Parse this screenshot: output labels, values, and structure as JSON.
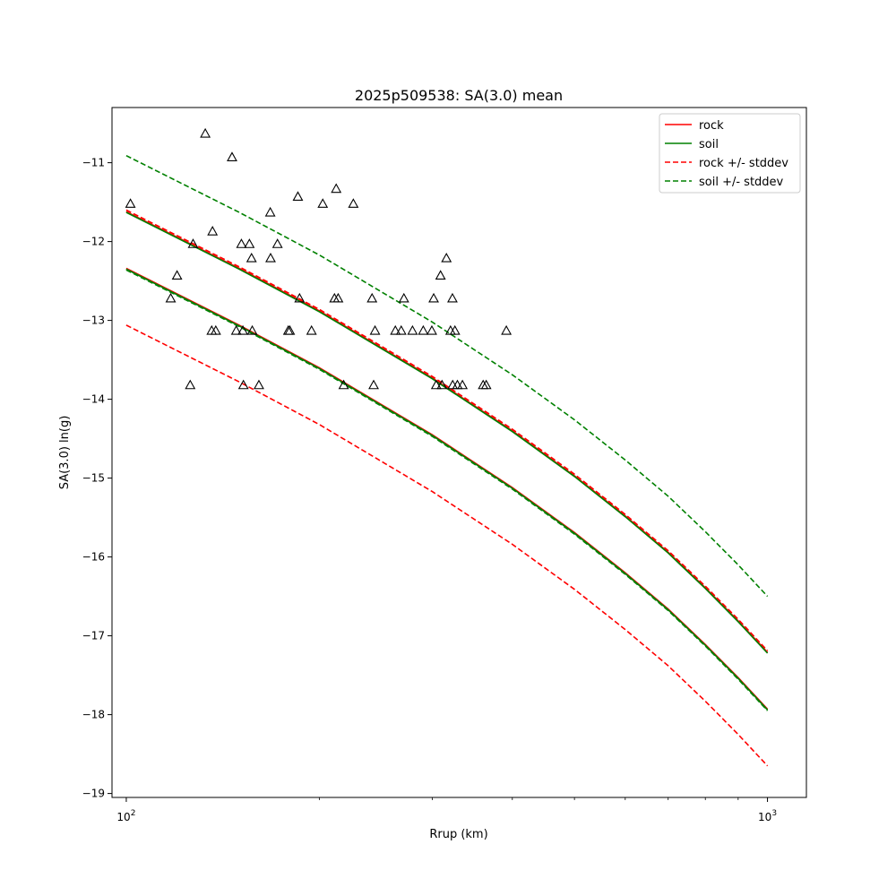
{
  "chart_data": {
    "type": "scatter",
    "title": "2025p509538: SA(3.0) mean",
    "xlabel": "Rrup (km)",
    "ylabel": "SA(3.0) ln(g)",
    "xscale": "log",
    "xlim": [
      95,
      1150
    ],
    "ylim": [
      -19.05,
      -10.3
    ],
    "grid": false,
    "legend_position": "top-right",
    "x_ticks": [
      {
        "value": 100,
        "label": "10",
        "exp": "2"
      },
      {
        "value": 1000,
        "label": "10",
        "exp": "3"
      }
    ],
    "y_ticks": [
      {
        "value": -11,
        "label": "−11"
      },
      {
        "value": -12,
        "label": "−12"
      },
      {
        "value": -13,
        "label": "−13"
      },
      {
        "value": -14,
        "label": "−14"
      },
      {
        "value": -15,
        "label": "−15"
      },
      {
        "value": -16,
        "label": "−16"
      },
      {
        "value": -17,
        "label": "−17"
      },
      {
        "value": -18,
        "label": "−18"
      },
      {
        "value": -19,
        "label": "−19"
      }
    ],
    "x_grid": [
      100,
      200,
      300,
      400,
      500,
      600,
      700,
      800,
      900,
      1000
    ],
    "series": [
      {
        "name": "rock",
        "color": "#ff0000",
        "dash": "solid",
        "x": [
          100,
          150,
          200,
          300,
          400,
          500,
          600,
          700,
          800,
          900,
          1000
        ],
        "y": [
          -12.34,
          -13.06,
          -13.6,
          -14.45,
          -15.12,
          -15.69,
          -16.2,
          -16.66,
          -17.11,
          -17.53,
          -17.93
        ]
      },
      {
        "name": "soil",
        "color": "#008000",
        "dash": "solid",
        "x": [
          100,
          150,
          200,
          300,
          400,
          500,
          600,
          700,
          800,
          900,
          1000
        ],
        "y": [
          -12.35,
          -13.07,
          -13.61,
          -14.46,
          -15.13,
          -15.7,
          -16.21,
          -16.67,
          -17.12,
          -17.54,
          -17.94
        ]
      },
      {
        "name": "rock",
        "color": "#ff0000",
        "dash": "solid",
        "x": [
          100,
          150,
          200,
          300,
          400,
          500,
          600,
          700,
          800,
          900,
          1000
        ],
        "y": [
          -11.62,
          -12.34,
          -12.88,
          -13.73,
          -14.4,
          -14.97,
          -15.48,
          -15.94,
          -16.39,
          -16.81,
          -17.21
        ]
      },
      {
        "name": "soil",
        "color": "#008000",
        "dash": "solid",
        "x": [
          100,
          150,
          200,
          300,
          400,
          500,
          600,
          700,
          800,
          900,
          1000
        ],
        "y": [
          -11.63,
          -12.35,
          -12.89,
          -13.74,
          -14.41,
          -14.98,
          -15.49,
          -15.95,
          -16.4,
          -16.82,
          -17.22
        ]
      },
      {
        "name": "rock +/- stddev",
        "color": "#ff0000",
        "dash": "dashed",
        "x": [
          100,
          150,
          200,
          300,
          400,
          500,
          600,
          700,
          800,
          900,
          1000
        ],
        "y": [
          -13.06,
          -13.78,
          -14.32,
          -15.17,
          -15.84,
          -16.41,
          -16.92,
          -17.38,
          -17.83,
          -18.25,
          -18.65
        ]
      },
      {
        "name": "rock +/- stddev",
        "color": "#ff0000",
        "dash": "dashed",
        "x": [
          100,
          150,
          200,
          300,
          400,
          500,
          600,
          700,
          800,
          900,
          1000
        ],
        "y": [
          -11.6,
          -12.32,
          -12.86,
          -13.71,
          -14.38,
          -14.95,
          -15.46,
          -15.92,
          -16.37,
          -16.79,
          -17.19
        ]
      },
      {
        "name": "soil +/- stddev",
        "color": "#008000",
        "dash": "dashed",
        "x": [
          100,
          150,
          200,
          300,
          400,
          500,
          600,
          700,
          800,
          900,
          1000
        ],
        "y": [
          -10.91,
          -11.63,
          -12.17,
          -13.02,
          -13.69,
          -14.26,
          -14.77,
          -15.23,
          -15.68,
          -16.1,
          -16.5
        ]
      },
      {
        "name": "soil +/- stddev",
        "color": "#008000",
        "dash": "dashed",
        "x": [
          100,
          150,
          200,
          300,
          400,
          500,
          600,
          700,
          800,
          900,
          1000
        ],
        "y": [
          -12.36,
          -13.08,
          -13.62,
          -14.47,
          -15.14,
          -15.71,
          -16.22,
          -16.68,
          -17.13,
          -17.55,
          -17.95
        ]
      }
    ],
    "observations": {
      "marker": "open-triangle",
      "color": "#000000",
      "points": [
        {
          "x": 101.5,
          "y": -11.52
        },
        {
          "x": 117.3,
          "y": -12.72
        },
        {
          "x": 120.0,
          "y": -12.43
        },
        {
          "x": 125.8,
          "y": -13.82
        },
        {
          "x": 127.1,
          "y": -12.03
        },
        {
          "x": 132.8,
          "y": -10.63
        },
        {
          "x": 135.9,
          "y": -13.13
        },
        {
          "x": 136.3,
          "y": -11.87
        },
        {
          "x": 137.9,
          "y": -13.13
        },
        {
          "x": 146.2,
          "y": -10.93
        },
        {
          "x": 148.4,
          "y": -13.13
        },
        {
          "x": 151.2,
          "y": -12.03
        },
        {
          "x": 152.0,
          "y": -13.13
        },
        {
          "x": 152.3,
          "y": -13.82
        },
        {
          "x": 155.6,
          "y": -12.03
        },
        {
          "x": 156.8,
          "y": -12.21
        },
        {
          "x": 157.2,
          "y": -13.13
        },
        {
          "x": 161.0,
          "y": -13.82
        },
        {
          "x": 167.7,
          "y": -11.63
        },
        {
          "x": 167.9,
          "y": -12.21
        },
        {
          "x": 172.1,
          "y": -12.03
        },
        {
          "x": 178.9,
          "y": -13.13
        },
        {
          "x": 179.9,
          "y": -13.13
        },
        {
          "x": 185.2,
          "y": -11.43
        },
        {
          "x": 186.3,
          "y": -12.72
        },
        {
          "x": 194.5,
          "y": -13.13
        },
        {
          "x": 202.5,
          "y": -11.52
        },
        {
          "x": 211.2,
          "y": -12.72
        },
        {
          "x": 212.5,
          "y": -11.33
        },
        {
          "x": 214.0,
          "y": -12.72
        },
        {
          "x": 218.3,
          "y": -13.82
        },
        {
          "x": 226.0,
          "y": -11.52
        },
        {
          "x": 241.7,
          "y": -12.72
        },
        {
          "x": 243.1,
          "y": -13.82
        },
        {
          "x": 244.3,
          "y": -13.13
        },
        {
          "x": 262.8,
          "y": -13.13
        },
        {
          "x": 268.4,
          "y": -13.13
        },
        {
          "x": 271.0,
          "y": -12.72
        },
        {
          "x": 279.5,
          "y": -13.13
        },
        {
          "x": 290.5,
          "y": -13.13
        },
        {
          "x": 299.6,
          "y": -13.13
        },
        {
          "x": 301.6,
          "y": -12.72
        },
        {
          "x": 304.3,
          "y": -13.82
        },
        {
          "x": 309.1,
          "y": -12.43
        },
        {
          "x": 310.7,
          "y": -13.82
        },
        {
          "x": 315.7,
          "y": -12.21
        },
        {
          "x": 320.4,
          "y": -13.13
        },
        {
          "x": 322.6,
          "y": -12.72
        },
        {
          "x": 322.9,
          "y": -13.82
        },
        {
          "x": 325.5,
          "y": -13.13
        },
        {
          "x": 328.4,
          "y": -13.82
        },
        {
          "x": 334.4,
          "y": -13.82
        },
        {
          "x": 360.2,
          "y": -13.82
        },
        {
          "x": 364.2,
          "y": -13.82
        },
        {
          "x": 391.5,
          "y": -13.13
        }
      ]
    },
    "legend": [
      {
        "label": "rock",
        "color": "#ff0000",
        "dash": "solid"
      },
      {
        "label": "soil",
        "color": "#008000",
        "dash": "solid"
      },
      {
        "label": "rock +/- stddev",
        "color": "#ff0000",
        "dash": "dashed"
      },
      {
        "label": "soil +/- stddev",
        "color": "#008000",
        "dash": "dashed"
      }
    ]
  }
}
